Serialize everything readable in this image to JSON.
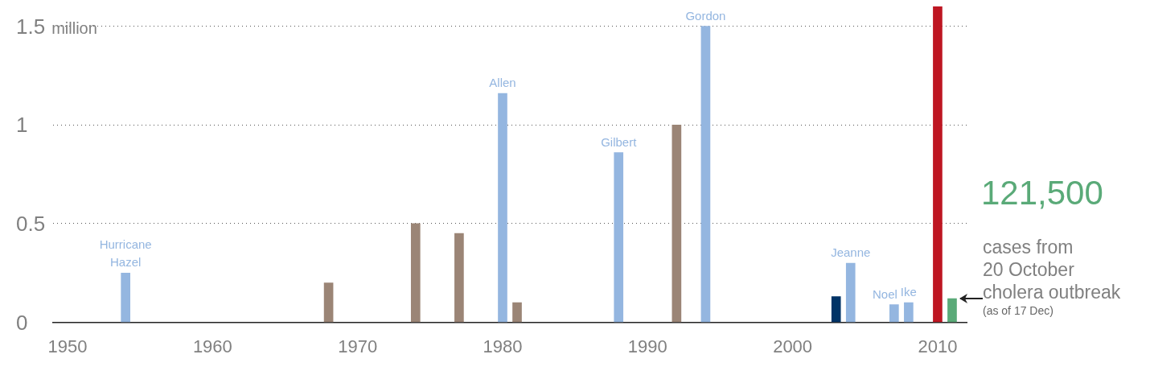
{
  "chart_data": {
    "type": "bar",
    "xlim": [
      1949,
      2012
    ],
    "xticks": [
      1950,
      1960,
      1970,
      1980,
      1990,
      2000,
      2010
    ],
    "ylim": [
      0,
      1.6
    ],
    "yticks": [
      0,
      0.5,
      1,
      {
        "value": 1.5,
        "label": "1.5 million"
      }
    ],
    "grid": "y",
    "legend": false,
    "series": [
      {
        "color": "#94b6e0",
        "x": [
          1954,
          1980,
          1988,
          1994,
          2004,
          2007,
          2008
        ],
        "values": [
          0.25,
          1.16,
          0.86,
          1.5,
          0.3,
          0.09,
          0.1
        ]
      },
      {
        "color": "#9b8576",
        "x": [
          1968,
          1974,
          1977,
          1981,
          1992
        ],
        "values": [
          0.2,
          0.5,
          0.45,
          0.1,
          1.0
        ]
      },
      {
        "color": "#003366",
        "x": [
          2003
        ],
        "values": [
          0.13
        ]
      },
      {
        "color": "#be1622",
        "x": [
          2010
        ],
        "values": [
          1.6
        ]
      },
      {
        "color": "#5aaa78",
        "x": [
          2011
        ],
        "values": [
          0.12
        ]
      }
    ],
    "annotations": [
      {
        "text": "Hurricane\nHazel",
        "x": 1954,
        "y": 0.25
      },
      {
        "text": "Allen",
        "x": 1980,
        "y": 1.16
      },
      {
        "text": "Gilbert",
        "x": 1988,
        "y": 0.86
      },
      {
        "text": "Gordon",
        "x": 1994,
        "y": 1.5
      },
      {
        "text": "Jeanne",
        "x": 2004,
        "y": 0.3
      },
      {
        "text": "Noel",
        "x": 2007,
        "y": 0.09
      },
      {
        "text": "Ike",
        "x": 2008,
        "y": 0.1
      },
      "121,500",
      "cases from\n20 October\ncholera outbreak",
      "(as of 17 Dec)"
    ]
  }
}
